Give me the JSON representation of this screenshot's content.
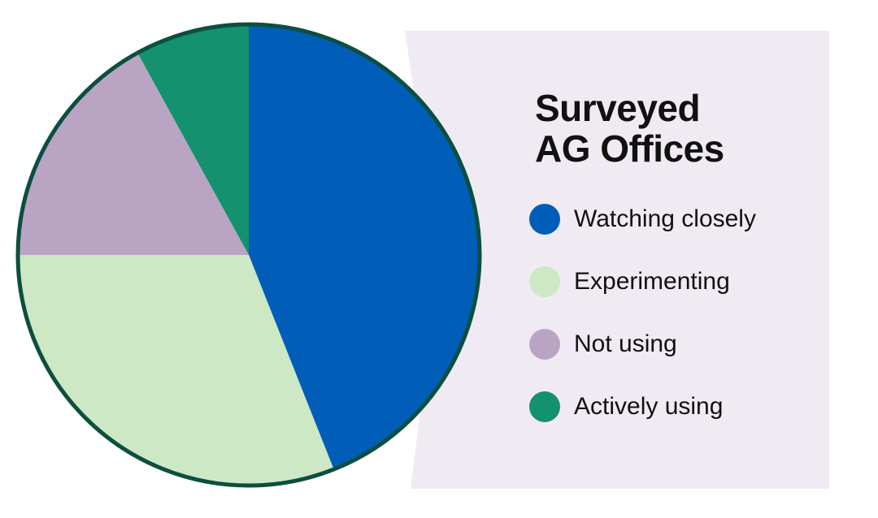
{
  "chart_data": {
    "type": "pie",
    "title": "Surveyed AG Offices",
    "categories": [
      "Watching closely",
      "Experimenting",
      "Not using",
      "Actively using"
    ],
    "values": [
      44,
      31,
      17,
      8
    ],
    "colors": [
      "#005eb8",
      "#cce8c4",
      "#b9a4c4",
      "#14916e"
    ]
  }
}
